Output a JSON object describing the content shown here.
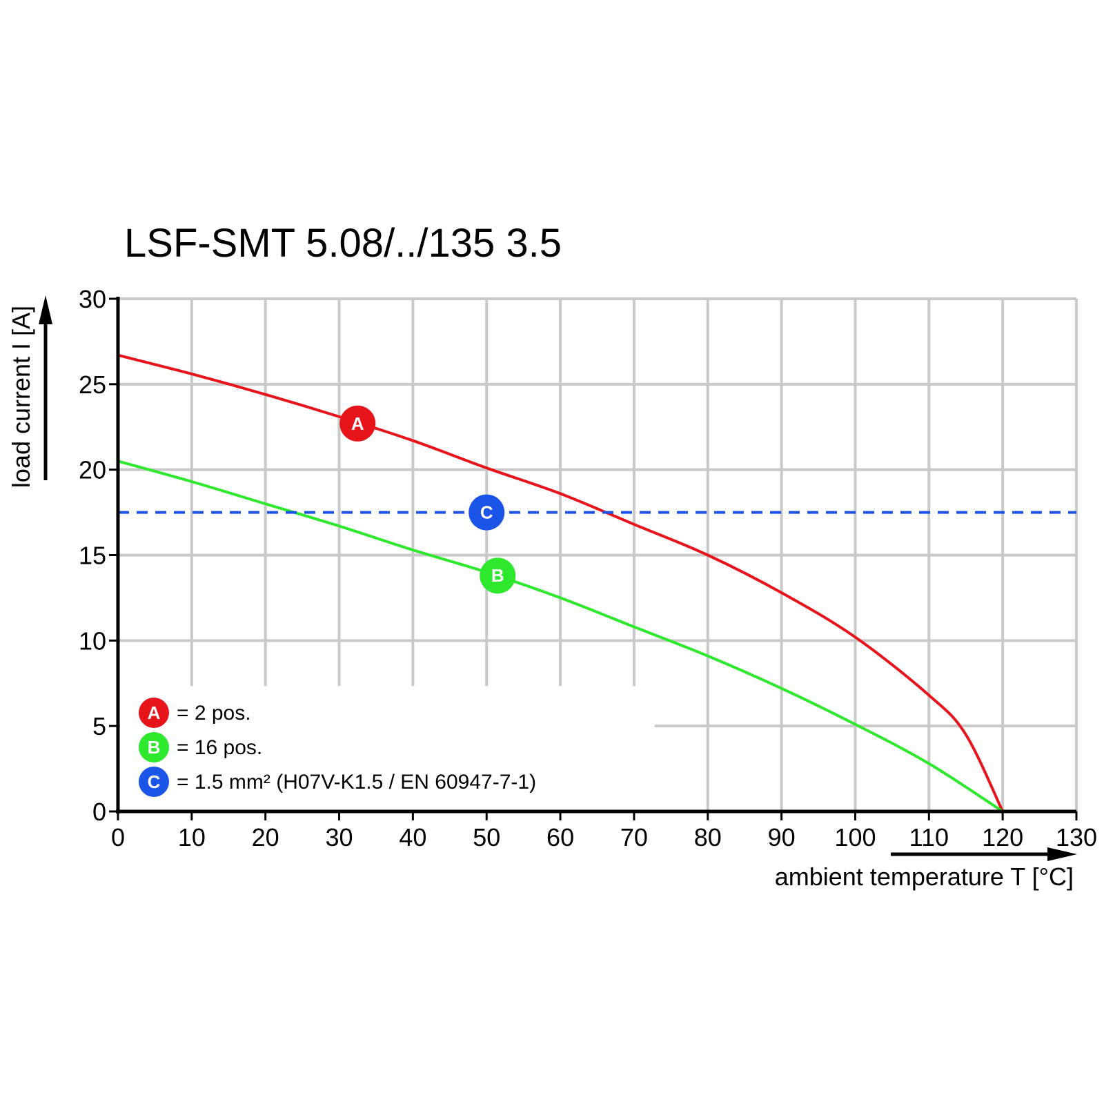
{
  "chart_data": {
    "type": "line",
    "title": "LSF-SMT 5.08/../135 3.5",
    "xlabel": "ambient temperature T [°C]",
    "ylabel": "load current I [A]",
    "xlim": [
      0,
      130
    ],
    "ylim": [
      0,
      30
    ],
    "x_ticks": [
      "0",
      "10",
      "20",
      "30",
      "40",
      "50",
      "60",
      "70",
      "80",
      "90",
      "100",
      "110",
      "120",
      "130"
    ],
    "y_ticks": [
      "0",
      "5",
      "10",
      "15",
      "20",
      "25",
      "30"
    ],
    "grid": true,
    "legend_position": "bottom-left",
    "series": [
      {
        "id": "A",
        "legend_label": "= 2 pos.",
        "color": "#e8141b",
        "marker_at": [
          32.5,
          22.7
        ],
        "x": [
          0,
          10,
          20,
          30,
          40,
          50,
          60,
          70,
          80,
          90,
          100,
          110,
          115,
          120
        ],
        "y": [
          26.7,
          25.6,
          24.4,
          23.1,
          21.7,
          20.1,
          18.6,
          16.8,
          15.0,
          12.8,
          10.2,
          6.8,
          4.5,
          0
        ]
      },
      {
        "id": "B",
        "legend_label": "= 16 pos.",
        "color": "#2ee82e",
        "marker_at": [
          51.5,
          13.8
        ],
        "x": [
          0,
          10,
          20,
          30,
          40,
          50,
          60,
          70,
          80,
          90,
          100,
          110,
          120
        ],
        "y": [
          20.5,
          19.3,
          18.0,
          16.7,
          15.3,
          14.0,
          12.5,
          10.8,
          9.1,
          7.2,
          5.1,
          2.8,
          0
        ]
      },
      {
        "id": "C",
        "legend_label": "= 1.5 mm² (H07V-K1.5 / EN 60947-7-1)",
        "color": "#1a55e8",
        "dashed": true,
        "marker_at": [
          50,
          17.5
        ],
        "x": [
          0,
          130
        ],
        "y": [
          17.5,
          17.5
        ]
      }
    ]
  }
}
